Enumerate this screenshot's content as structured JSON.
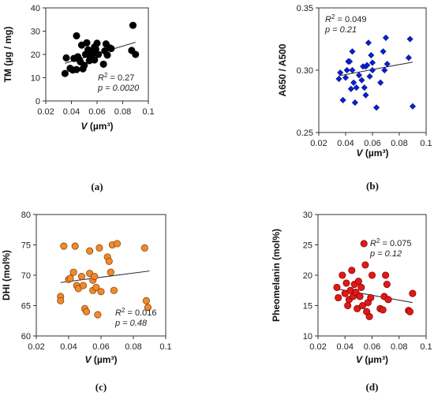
{
  "chart_data": [
    {
      "type": "scatter",
      "panel_label": "(a)",
      "xlabel_var": "V",
      "xlabel_unit": " (µm³)",
      "ylabel": "TM (µg / mg)",
      "xlim": [
        0.02,
        0.1
      ],
      "ylim": [
        0,
        40
      ],
      "xticks": [
        "0.02",
        "0.04",
        "0.06",
        "0.08",
        "0.1"
      ],
      "yticks": [
        "0",
        "10",
        "20",
        "30",
        "40"
      ],
      "xtick_values": [
        0.02,
        0.04,
        0.06,
        0.08,
        0.1
      ],
      "ytick_values": [
        0,
        10,
        20,
        30,
        40
      ],
      "stat_var": "R",
      "stat_sup": "2",
      "stat_r2": " = 0.27",
      "stat_p": "p = 0.0020",
      "stat_position": "bottom-right",
      "marker": "circle",
      "color": "#000000",
      "edge": "#000000",
      "trend": {
        "x": [
          0.035,
          0.09
        ],
        "y": [
          16.2,
          25.2
        ]
      },
      "points": [
        [
          0.035,
          11.8
        ],
        [
          0.036,
          18.5
        ],
        [
          0.039,
          14.0
        ],
        [
          0.041,
          13.3
        ],
        [
          0.042,
          18.3
        ],
        [
          0.044,
          28.0
        ],
        [
          0.044,
          13.5
        ],
        [
          0.045,
          19.0
        ],
        [
          0.046,
          17.8
        ],
        [
          0.047,
          16.8
        ],
        [
          0.048,
          24.0
        ],
        [
          0.049,
          13.8
        ],
        [
          0.05,
          15.3
        ],
        [
          0.051,
          20.0
        ],
        [
          0.052,
          25.0
        ],
        [
          0.053,
          22.0
        ],
        [
          0.054,
          17.3
        ],
        [
          0.055,
          18.6
        ],
        [
          0.055,
          20.8
        ],
        [
          0.056,
          19.7
        ],
        [
          0.057,
          21.0
        ],
        [
          0.058,
          17.6
        ],
        [
          0.058,
          23.2
        ],
        [
          0.059,
          22.3
        ],
        [
          0.06,
          24.8
        ],
        [
          0.061,
          20.0
        ],
        [
          0.065,
          15.8
        ],
        [
          0.066,
          21.5
        ],
        [
          0.067,
          24.5
        ],
        [
          0.068,
          19.7
        ],
        [
          0.07,
          22.8
        ],
        [
          0.071,
          22.5
        ],
        [
          0.087,
          21.7
        ],
        [
          0.088,
          32.5
        ],
        [
          0.09,
          20.0
        ]
      ]
    },
    {
      "type": "scatter",
      "panel_label": "(b)",
      "xlabel_var": "V",
      "xlabel_unit": " (µm³)",
      "ylabel": "A650 / A500",
      "xlim": [
        0.02,
        0.1
      ],
      "ylim": [
        0.25,
        0.35
      ],
      "xticks": [
        "0.02",
        "0.04",
        "0.06",
        "0.08",
        "0.1"
      ],
      "yticks": [
        "0.25",
        "0.30",
        "0.35"
      ],
      "xtick_values": [
        0.02,
        0.04,
        0.06,
        0.08,
        0.1
      ],
      "ytick_values": [
        0.25,
        0.3,
        0.35
      ],
      "stat_var": "R",
      "stat_sup": "2",
      "stat_r2": " = 0.049",
      "stat_p": "p = 0.21",
      "stat_position": "top-left",
      "marker": "diamond",
      "color": "#0a1fd8",
      "edge": "#00107a",
      "trend": {
        "x": [
          0.035,
          0.09
        ],
        "y": [
          0.2955,
          0.3065
        ]
      },
      "points": [
        [
          0.035,
          0.293
        ],
        [
          0.036,
          0.298
        ],
        [
          0.038,
          0.276
        ],
        [
          0.04,
          0.294
        ],
        [
          0.041,
          0.3
        ],
        [
          0.042,
          0.307
        ],
        [
          0.043,
          0.307
        ],
        [
          0.044,
          0.285
        ],
        [
          0.045,
          0.315
        ],
        [
          0.045,
          0.3
        ],
        [
          0.046,
          0.29
        ],
        [
          0.047,
          0.274
        ],
        [
          0.048,
          0.286
        ],
        [
          0.05,
          0.296
        ],
        [
          0.052,
          0.292
        ],
        [
          0.053,
          0.303
        ],
        [
          0.054,
          0.286
        ],
        [
          0.055,
          0.28
        ],
        [
          0.055,
          0.303
        ],
        [
          0.056,
          0.304
        ],
        [
          0.057,
          0.322
        ],
        [
          0.058,
          0.295
        ],
        [
          0.059,
          0.312
        ],
        [
          0.06,
          0.3
        ],
        [
          0.06,
          0.306
        ],
        [
          0.063,
          0.27
        ],
        [
          0.066,
          0.29
        ],
        [
          0.068,
          0.315
        ],
        [
          0.069,
          0.3
        ],
        [
          0.07,
          0.326
        ],
        [
          0.071,
          0.305
        ],
        [
          0.087,
          0.31
        ],
        [
          0.088,
          0.325
        ],
        [
          0.09,
          0.271
        ]
      ]
    },
    {
      "type": "scatter",
      "panel_label": "(c)",
      "xlabel_var": "V",
      "xlabel_unit": " (µm³)",
      "ylabel": "DHI (mol%)",
      "xlim": [
        0.02,
        0.1
      ],
      "ylim": [
        60,
        80
      ],
      "xticks": [
        "0.02",
        "0.04",
        "0.06",
        "0.08",
        "0.1"
      ],
      "yticks": [
        "60",
        "65",
        "70",
        "75",
        "80"
      ],
      "xtick_values": [
        0.02,
        0.04,
        0.06,
        0.08,
        0.1
      ],
      "ytick_values": [
        60,
        65,
        70,
        75,
        80
      ],
      "stat_var": "R",
      "stat_sup": "2",
      "stat_r2": " = 0.016",
      "stat_p": "p = 0.48",
      "stat_position": "bottom-right",
      "marker": "circle",
      "color": "#f08a2c",
      "edge": "#7a3a00",
      "trend": {
        "x": [
          0.035,
          0.09
        ],
        "y": [
          68.8,
          70.7
        ]
      },
      "points": [
        [
          0.035,
          66.5
        ],
        [
          0.035,
          65.8
        ],
        [
          0.037,
          74.8
        ],
        [
          0.04,
          69.3
        ],
        [
          0.041,
          69.5
        ],
        [
          0.043,
          70.5
        ],
        [
          0.044,
          74.8
        ],
        [
          0.045,
          68.3
        ],
        [
          0.046,
          67.8
        ],
        [
          0.048,
          69.8
        ],
        [
          0.049,
          68.3
        ],
        [
          0.05,
          64.5
        ],
        [
          0.051,
          64.0
        ],
        [
          0.053,
          70.3
        ],
        [
          0.053,
          74.0
        ],
        [
          0.055,
          67.5
        ],
        [
          0.055,
          69.2
        ],
        [
          0.056,
          69.8
        ],
        [
          0.057,
          68.0
        ],
        [
          0.058,
          63.5
        ],
        [
          0.059,
          74.5
        ],
        [
          0.06,
          67.3
        ],
        [
          0.064,
          73.0
        ],
        [
          0.065,
          72.3
        ],
        [
          0.066,
          70.5
        ],
        [
          0.067,
          75.0
        ],
        [
          0.068,
          67.5
        ],
        [
          0.07,
          75.2
        ],
        [
          0.087,
          74.5
        ],
        [
          0.088,
          65.8
        ],
        [
          0.089,
          64.7
        ]
      ]
    },
    {
      "type": "scatter",
      "panel_label": "(d)",
      "xlabel_var": "V",
      "xlabel_unit": " (µm³)",
      "ylabel": "Pheomelanin (mol%)",
      "xlim": [
        0.02,
        0.1
      ],
      "ylim": [
        10,
        30
      ],
      "xticks": [
        "0.02",
        "0.04",
        "0.06",
        "0.08",
        "0.1"
      ],
      "yticks": [
        "10",
        "15",
        "20",
        "25",
        "30"
      ],
      "xtick_values": [
        0.02,
        0.04,
        0.06,
        0.08,
        0.1
      ],
      "ytick_values": [
        10,
        15,
        20,
        25,
        30
      ],
      "stat_var": "R",
      "stat_sup": "2",
      "stat_r2": " = 0.075",
      "stat_p": "p = 0.12",
      "stat_position": "top-right",
      "marker": "circle",
      "color": "#e01818",
      "edge": "#7a0000",
      "trend": {
        "x": [
          0.035,
          0.09
        ],
        "y": [
          17.7,
          15.5
        ]
      },
      "points": [
        [
          0.034,
          18.0
        ],
        [
          0.035,
          16.3
        ],
        [
          0.038,
          20.0
        ],
        [
          0.04,
          17.0
        ],
        [
          0.041,
          18.7
        ],
        [
          0.042,
          15.0
        ],
        [
          0.043,
          16.0
        ],
        [
          0.044,
          17.5
        ],
        [
          0.045,
          20.8
        ],
        [
          0.046,
          16.5
        ],
        [
          0.047,
          18.5
        ],
        [
          0.048,
          17.2
        ],
        [
          0.049,
          14.5
        ],
        [
          0.05,
          19.0
        ],
        [
          0.051,
          16.5
        ],
        [
          0.052,
          18.0
        ],
        [
          0.053,
          15.0
        ],
        [
          0.054,
          25.2
        ],
        [
          0.055,
          21.7
        ],
        [
          0.056,
          14.0
        ],
        [
          0.057,
          15.5
        ],
        [
          0.058,
          13.2
        ],
        [
          0.059,
          16.3
        ],
        [
          0.06,
          20.0
        ],
        [
          0.066,
          14.5
        ],
        [
          0.068,
          14.3
        ],
        [
          0.069,
          16.5
        ],
        [
          0.07,
          20.0
        ],
        [
          0.071,
          18.5
        ],
        [
          0.072,
          16.0
        ],
        [
          0.087,
          14.2
        ],
        [
          0.088,
          14.0
        ],
        [
          0.09,
          17.0
        ]
      ]
    }
  ]
}
